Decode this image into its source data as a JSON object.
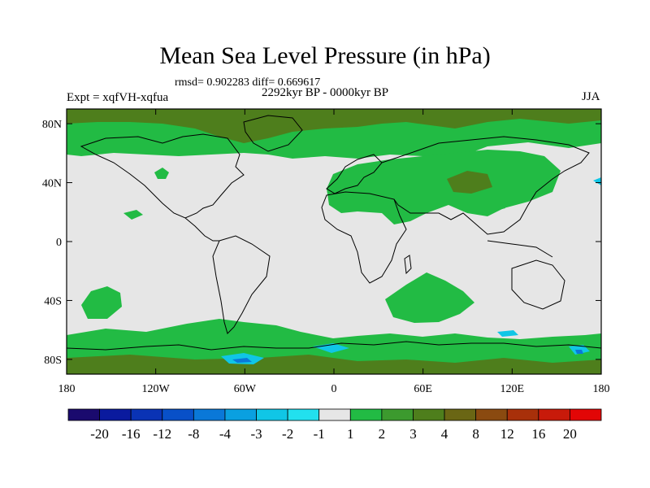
{
  "title": "Mean Sea Level Pressure (in hPa)",
  "stats": "rmsd= 0.902283 diff= 0.669617",
  "period": "2292kyr BP - 0000kyr BP",
  "expt": "Expt = xqfVH-xqfua",
  "season": "JJA",
  "axes": {
    "x_ticks": [
      "180",
      "120W",
      "60W",
      "0",
      "60E",
      "120E",
      "180"
    ],
    "y_ticks": [
      "80N",
      "40N",
      "0",
      "40S",
      "80S"
    ]
  },
  "colorbar": {
    "labels": [
      "-20",
      "-16",
      "-12",
      "-8",
      "-4",
      "-3",
      "-2",
      "-1",
      "1",
      "2",
      "3",
      "4",
      "8",
      "12",
      "16",
      "20"
    ],
    "colors": [
      "#1a0a6e",
      "#0a1a9e",
      "#0a33b5",
      "#0850c8",
      "#0a78d8",
      "#0aa0e0",
      "#10c6e6",
      "#22e0ee",
      "#e6e6e6",
      "#22bb44",
      "#3c9a2e",
      "#4e7e1c",
      "#6a6614",
      "#8a4a10",
      "#a8300a",
      "#c81a0a",
      "#e20606"
    ]
  },
  "map_colors": {
    "neutral": "#e6e6e6",
    "green": "#22bb44",
    "olive": "#4e7e1c",
    "cyan": "#10c6e6",
    "blue": "#0a78d8",
    "coast": "#000000"
  }
}
